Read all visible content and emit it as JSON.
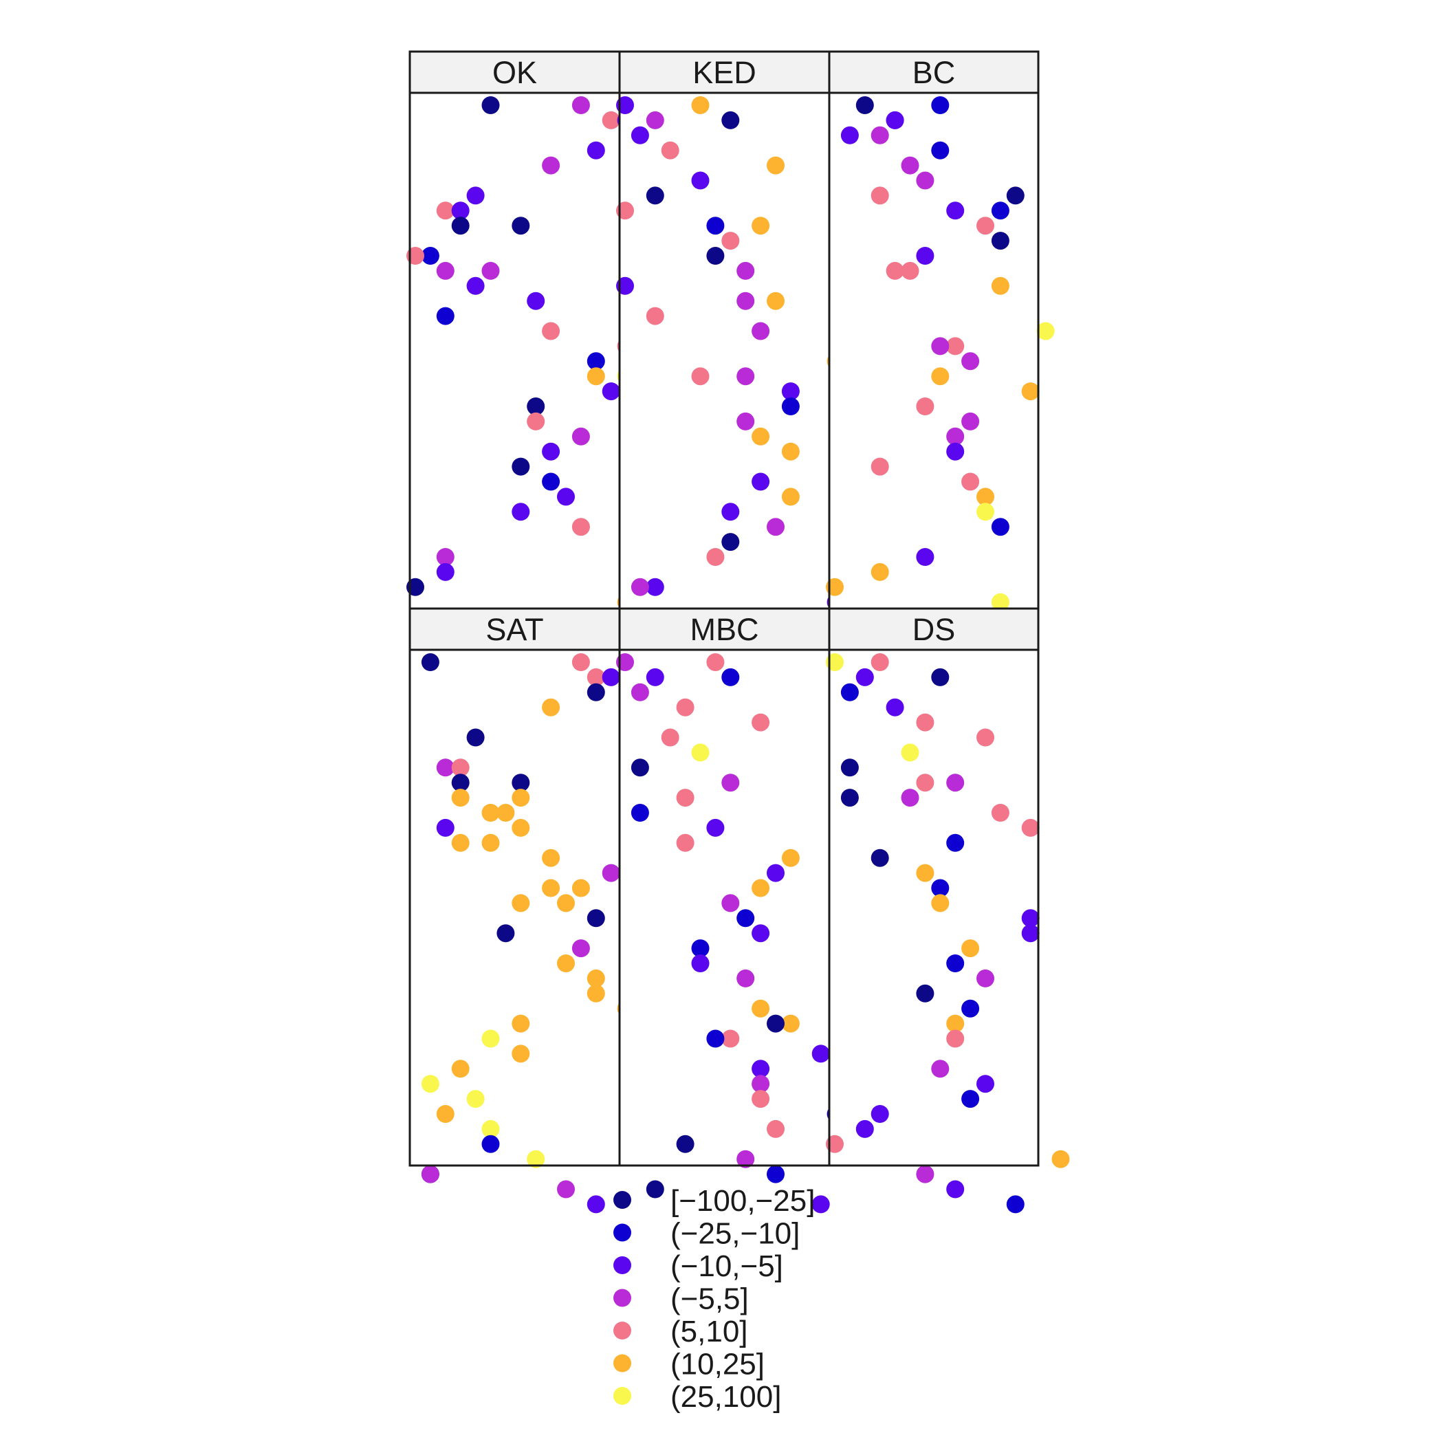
{
  "chart_data": {
    "type": "scatter",
    "layout": "faceted-grid",
    "grid": false,
    "legend_position": "bottom",
    "facets": [
      {
        "title": "OK",
        "points": [
          [
            6,
            1,
            1
          ],
          [
            12,
            1,
            4
          ],
          [
            14,
            2,
            5
          ],
          [
            15,
            2,
            3
          ],
          [
            16,
            2,
            2
          ],
          [
            13,
            4,
            3
          ],
          [
            10,
            5,
            4
          ],
          [
            5,
            7,
            3
          ],
          [
            3,
            8,
            5
          ],
          [
            4,
            8,
            3
          ],
          [
            4,
            9,
            1
          ],
          [
            8,
            9,
            1
          ],
          [
            2,
            11,
            2
          ],
          [
            1,
            11,
            5
          ],
          [
            3,
            12,
            4
          ],
          [
            6,
            12,
            4
          ],
          [
            5,
            13,
            3
          ],
          [
            9,
            14,
            3
          ],
          [
            3,
            15,
            2
          ],
          [
            10,
            16,
            5
          ],
          [
            15,
            17,
            5
          ],
          [
            13,
            18,
            2
          ],
          [
            13,
            19,
            6
          ],
          [
            15,
            19,
            7
          ],
          [
            14,
            20,
            3
          ],
          [
            9,
            21,
            1
          ],
          [
            9,
            22,
            5
          ],
          [
            12,
            23,
            4
          ],
          [
            10,
            24,
            3
          ],
          [
            8,
            25,
            1
          ],
          [
            10,
            26,
            2
          ],
          [
            11,
            27,
            3
          ],
          [
            8,
            28,
            3
          ],
          [
            12,
            29,
            5
          ],
          [
            3,
            31,
            4
          ],
          [
            3,
            32,
            3
          ],
          [
            1,
            33,
            1
          ],
          [
            15,
            34,
            6
          ],
          [
            8,
            35,
            6
          ],
          [
            4,
            36,
            4
          ]
        ]
      },
      {
        "title": "KED",
        "points": [
          [
            1,
            1,
            3
          ],
          [
            6,
            1,
            6
          ],
          [
            3,
            2,
            4
          ],
          [
            8,
            2,
            1
          ],
          [
            2,
            3,
            3
          ],
          [
            4,
            4,
            5
          ],
          [
            11,
            5,
            6
          ],
          [
            6,
            6,
            3
          ],
          [
            3,
            7,
            0
          ],
          [
            1,
            8,
            5
          ],
          [
            7,
            9,
            2
          ],
          [
            10,
            9,
            6
          ],
          [
            8,
            10,
            5
          ],
          [
            7,
            11,
            1
          ],
          [
            9,
            12,
            4
          ],
          [
            1,
            13,
            3
          ],
          [
            9,
            14,
            4
          ],
          [
            11,
            14,
            6
          ],
          [
            3,
            15,
            5
          ],
          [
            10,
            16,
            4
          ],
          [
            15,
            18,
            6
          ],
          [
            9,
            19,
            4
          ],
          [
            6,
            19,
            5
          ],
          [
            12,
            20,
            3
          ],
          [
            12,
            21,
            2
          ],
          [
            9,
            22,
            4
          ],
          [
            10,
            23,
            6
          ],
          [
            12,
            24,
            6
          ],
          [
            10,
            26,
            3
          ],
          [
            12,
            27,
            6
          ],
          [
            8,
            28,
            3
          ],
          [
            11,
            29,
            4
          ],
          [
            8,
            30,
            1
          ],
          [
            7,
            31,
            5
          ],
          [
            3,
            33,
            3
          ],
          [
            2,
            33,
            4
          ],
          [
            15,
            34,
            3
          ],
          [
            10,
            35,
            4
          ],
          [
            6,
            36,
            1
          ],
          [
            13,
            37,
            1
          ]
        ]
      },
      {
        "title": "BC",
        "points": [
          [
            3,
            1,
            1
          ],
          [
            8,
            1,
            2
          ],
          [
            5,
            2,
            3
          ],
          [
            5,
            2,
            3
          ],
          [
            2,
            3,
            3
          ],
          [
            4,
            3,
            4
          ],
          [
            8,
            4,
            2
          ],
          [
            6,
            5,
            4
          ],
          [
            7,
            6,
            4
          ],
          [
            4,
            7,
            5
          ],
          [
            13,
            7,
            1
          ],
          [
            9,
            8,
            3
          ],
          [
            12,
            8,
            2
          ],
          [
            11,
            9,
            5
          ],
          [
            12,
            10,
            1
          ],
          [
            7,
            11,
            3
          ],
          [
            5,
            12,
            5
          ],
          [
            6,
            12,
            5
          ],
          [
            12,
            13,
            6
          ],
          [
            15,
            16,
            7
          ],
          [
            9,
            17,
            5
          ],
          [
            8,
            17,
            4
          ],
          [
            10,
            18,
            4
          ],
          [
            8,
            19,
            6
          ],
          [
            14,
            20,
            6
          ],
          [
            7,
            21,
            5
          ],
          [
            10,
            22,
            4
          ],
          [
            9,
            23,
            4
          ],
          [
            9,
            24,
            3
          ],
          [
            4,
            25,
            5
          ],
          [
            10,
            26,
            5
          ],
          [
            11,
            27,
            6
          ],
          [
            11,
            28,
            7
          ],
          [
            12,
            29,
            2
          ],
          [
            7,
            31,
            3
          ],
          [
            4,
            32,
            6
          ],
          [
            1,
            33,
            6
          ],
          [
            12,
            34,
            7
          ],
          [
            5,
            35,
            1
          ],
          [
            2,
            36,
            6
          ]
        ]
      },
      {
        "title": "SAT",
        "points": [
          [
            2,
            1,
            1
          ],
          [
            12,
            1,
            5
          ],
          [
            13,
            2,
            5
          ],
          [
            14,
            2,
            3
          ],
          [
            15,
            2,
            3
          ],
          [
            13,
            3,
            1
          ],
          [
            10,
            4,
            6
          ],
          [
            5,
            6,
            1
          ],
          [
            3,
            8,
            4
          ],
          [
            4,
            8,
            5
          ],
          [
            4,
            9,
            1
          ],
          [
            8,
            9,
            1
          ],
          [
            4,
            10,
            6
          ],
          [
            8,
            10,
            6
          ],
          [
            6,
            11,
            6
          ],
          [
            7,
            11,
            6
          ],
          [
            3,
            12,
            3
          ],
          [
            8,
            12,
            6
          ],
          [
            4,
            13,
            6
          ],
          [
            6,
            13,
            6
          ],
          [
            10,
            14,
            6
          ],
          [
            14,
            15,
            4
          ],
          [
            12,
            16,
            6
          ],
          [
            10,
            16,
            6
          ],
          [
            8,
            17,
            6
          ],
          [
            11,
            17,
            6
          ],
          [
            13,
            18,
            1
          ],
          [
            7,
            19,
            1
          ],
          [
            12,
            20,
            4
          ],
          [
            11,
            21,
            6
          ],
          [
            13,
            22,
            6
          ],
          [
            13,
            23,
            6
          ],
          [
            15,
            24,
            6
          ],
          [
            8,
            25,
            6
          ],
          [
            6,
            26,
            7
          ],
          [
            8,
            27,
            6
          ],
          [
            4,
            28,
            6
          ],
          [
            2,
            29,
            7
          ],
          [
            5,
            30,
            7
          ],
          [
            3,
            31,
            6
          ],
          [
            6,
            32,
            7
          ],
          [
            6,
            33,
            2
          ],
          [
            9,
            34,
            7
          ],
          [
            2,
            35,
            1
          ],
          [
            2,
            35,
            4
          ],
          [
            11,
            36,
            4
          ],
          [
            13,
            37,
            3
          ]
        ]
      },
      {
        "title": "MBC",
        "points": [
          [
            1,
            1,
            4
          ],
          [
            7,
            1,
            5
          ],
          [
            3,
            2,
            3
          ],
          [
            8,
            2,
            2
          ],
          [
            2,
            3,
            4
          ],
          [
            5,
            4,
            5
          ],
          [
            10,
            5,
            5
          ],
          [
            4,
            6,
            5
          ],
          [
            6,
            7,
            7
          ],
          [
            2,
            8,
            1
          ],
          [
            8,
            9,
            4
          ],
          [
            5,
            10,
            5
          ],
          [
            2,
            11,
            2
          ],
          [
            7,
            12,
            3
          ],
          [
            5,
            13,
            5
          ],
          [
            12,
            14,
            6
          ],
          [
            11,
            15,
            3
          ],
          [
            10,
            16,
            6
          ],
          [
            8,
            17,
            4
          ],
          [
            9,
            18,
            2
          ],
          [
            10,
            19,
            3
          ],
          [
            6,
            20,
            2
          ],
          [
            6,
            21,
            3
          ],
          [
            9,
            22,
            4
          ],
          [
            10,
            24,
            6
          ],
          [
            12,
            25,
            6
          ],
          [
            11,
            25,
            1
          ],
          [
            8,
            26,
            5
          ],
          [
            7,
            26,
            2
          ],
          [
            14,
            27,
            3
          ],
          [
            10,
            28,
            3
          ],
          [
            10,
            29,
            4
          ],
          [
            10,
            30,
            5
          ],
          [
            15,
            31,
            2
          ],
          [
            11,
            32,
            5
          ],
          [
            5,
            33,
            1
          ],
          [
            9,
            34,
            4
          ],
          [
            11,
            35,
            2
          ],
          [
            3,
            36,
            1
          ],
          [
            14,
            37,
            3
          ]
        ]
      },
      {
        "title": "DS",
        "points": [
          [
            1,
            1,
            7
          ],
          [
            4,
            1,
            5
          ],
          [
            3,
            2,
            3
          ],
          [
            8,
            2,
            1
          ],
          [
            2,
            3,
            2
          ],
          [
            5,
            4,
            3
          ],
          [
            7,
            5,
            5
          ],
          [
            11,
            6,
            5
          ],
          [
            6,
            7,
            7
          ],
          [
            2,
            8,
            1
          ],
          [
            7,
            9,
            5
          ],
          [
            9,
            9,
            4
          ],
          [
            2,
            10,
            1
          ],
          [
            6,
            10,
            4
          ],
          [
            12,
            11,
            5
          ],
          [
            14,
            12,
            5
          ],
          [
            9,
            13,
            2
          ],
          [
            4,
            14,
            1
          ],
          [
            7,
            15,
            6
          ],
          [
            8,
            16,
            2
          ],
          [
            8,
            17,
            6
          ],
          [
            14,
            18,
            3
          ],
          [
            14,
            19,
            3
          ],
          [
            10,
            20,
            6
          ],
          [
            9,
            21,
            2
          ],
          [
            11,
            22,
            4
          ],
          [
            7,
            23,
            1
          ],
          [
            10,
            24,
            2
          ],
          [
            9,
            25,
            6
          ],
          [
            9,
            26,
            5
          ],
          [
            8,
            28,
            4
          ],
          [
            11,
            29,
            3
          ],
          [
            10,
            30,
            2
          ],
          [
            4,
            31,
            3
          ],
          [
            3,
            32,
            3
          ],
          [
            1,
            33,
            5
          ],
          [
            16,
            34,
            6
          ],
          [
            7,
            35,
            4
          ],
          [
            9,
            36,
            3
          ],
          [
            13,
            37,
            2
          ]
        ]
      }
    ],
    "legend": {
      "entries": [
        "[−100,−25]",
        "(−25,−10]",
        "(−10,−5]",
        "(−5,5]",
        "(5,10]",
        "(10,25]",
        "(25,100]"
      ],
      "colors": [
        "#0d0887",
        "#0d00d0",
        "#5a06ee",
        "#b82bd7",
        "#f2758a",
        "#fdb32f",
        "#f9f74e"
      ]
    },
    "palette": [
      "#0d0887",
      "#0d00d0",
      "#5a06ee",
      "#b82bd7",
      "#f2758a",
      "#fdb32f",
      "#f9f74e"
    ]
  }
}
